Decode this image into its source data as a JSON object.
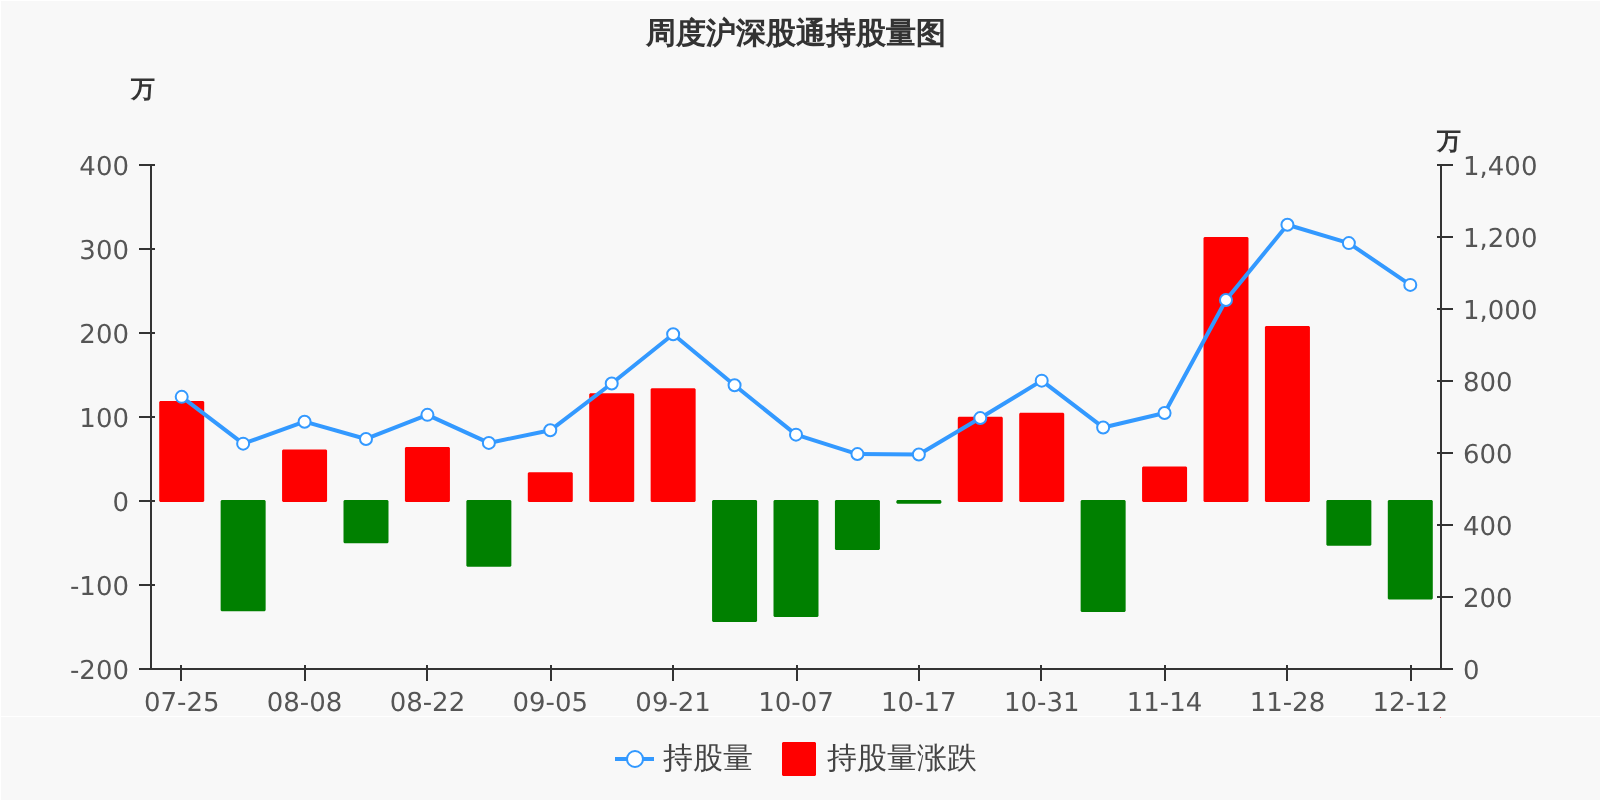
{
  "chart_data": {
    "type": "bar",
    "title": "周度沪深股通持股量图",
    "ylabel": "万",
    "y2label": "万",
    "categories": [
      "07-25",
      null,
      "08-08",
      null,
      "08-22",
      null,
      "09-05",
      null,
      "09-21",
      null,
      "10-07",
      null,
      "10-17",
      null,
      "10-31",
      null,
      "11-14",
      null,
      "11-28",
      null,
      "12-12"
    ],
    "ylim": [
      -200,
      400
    ],
    "yticks": [
      -200,
      -100,
      0,
      100,
      200,
      300,
      400
    ],
    "y2lim": [
      0,
      1400
    ],
    "y2ticks": [
      0,
      {
        "value": 200,
        "label": "200"
      },
      {
        "value": 400,
        "label": "400"
      },
      {
        "value": 600,
        "label": "600"
      },
      {
        "value": 800,
        "label": "800"
      },
      {
        "value": 1000,
        "label": "1,000"
      },
      {
        "value": 1200,
        "label": "1,200"
      },
      {
        "value": 1400,
        "label": "1,400"
      }
    ],
    "series": [
      {
        "name": "持股量",
        "type": "line",
        "axis": "y2",
        "color": "#3399ff",
        "marker": "circle",
        "values": [
          756,
          626,
          687,
          639,
          706,
          628,
          663,
          793,
          930,
          788,
          651,
          597,
          596,
          697,
          801,
          671,
          711,
          1025,
          1234,
          1183,
          1067
        ]
      },
      {
        "name": "持股量涨跌",
        "color": "#ff0000",
        "colors": [
          "#ff0000",
          "#008000",
          "#ff0000",
          "#008000",
          "#ff0000",
          "#008000",
          "#ff0000",
          "#ff0000",
          "#ff0000",
          "#008000",
          "#008000",
          "#008000",
          "#008000",
          "#ff0000",
          "#ff0000",
          "#008000",
          "#ff0000",
          "#ff0000",
          "#ff0000",
          "#008000",
          "#008000"
        ],
        "values": [
          118,
          -130,
          60,
          -49,
          63,
          -77,
          33,
          127,
          133,
          -143,
          -137,
          -57,
          -2,
          99,
          104,
          -131,
          40,
          313,
          207,
          -52,
          -116
        ]
      }
    ],
    "grid": false,
    "legend": "bottom"
  }
}
